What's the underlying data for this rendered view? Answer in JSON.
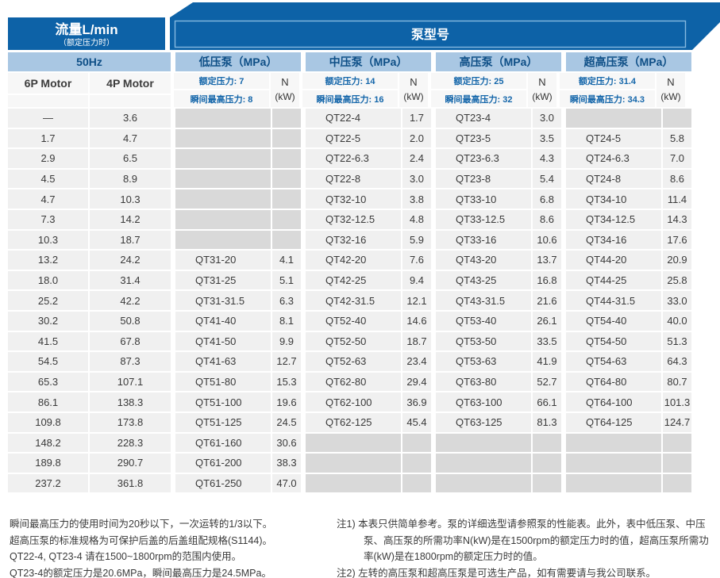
{
  "header": {
    "flow_title": "流量L/min",
    "flow_subtitle": "（额定压力时）",
    "pump_model_title": "泵型号",
    "frequency": "50Hz",
    "motor_6p": "6P Motor",
    "motor_4p": "4P Motor",
    "power_label_top": "N",
    "power_label_bottom": "(kW)"
  },
  "colors": {
    "dark_blue": "#0d62a7",
    "strip_blue": "#a9c7e3",
    "strip_text": "#0d4e86",
    "cell_gray": "#f0f0f0",
    "empty_gray": "#d9d9d9",
    "rated_text_blue": "#1466aa"
  },
  "sections": [
    {
      "name": "低压泵（MPa）",
      "rated_text": "额定压力: 7",
      "peak_text": "瞬间最高压力: 8"
    },
    {
      "name": "中压泵（MPa）",
      "rated_text": "额定压力: 14",
      "peak_text": "瞬间最高压力: 16"
    },
    {
      "name": "高压泵（MPa）",
      "rated_text": "额定压力: 25",
      "peak_text": "瞬间最高压力: 32"
    },
    {
      "name": "超高压泵（MPa）",
      "rated_text": "额定压力: 31.4",
      "peak_text": "瞬间最高压力: 34.3"
    }
  ],
  "rows": [
    {
      "flow6p": "—",
      "flow4p": "3.6",
      "cells": [
        "",
        "",
        "QT22-4",
        "1.7",
        "QT23-4",
        "3.0",
        "",
        ""
      ]
    },
    {
      "flow6p": "1.7",
      "flow4p": "4.7",
      "cells": [
        "",
        "",
        "QT22-5",
        "2.0",
        "QT23-5",
        "3.5",
        "QT24-5",
        "5.8"
      ]
    },
    {
      "flow6p": "2.9",
      "flow4p": "6.5",
      "cells": [
        "",
        "",
        "QT22-6.3",
        "2.4",
        "QT23-6.3",
        "4.3",
        "QT24-6.3",
        "7.0"
      ]
    },
    {
      "flow6p": "4.5",
      "flow4p": "8.9",
      "cells": [
        "",
        "",
        "QT22-8",
        "3.0",
        "QT23-8",
        "5.4",
        "QT24-8",
        "8.6"
      ]
    },
    {
      "flow6p": "4.7",
      "flow4p": "10.3",
      "cells": [
        "",
        "",
        "QT32-10",
        "3.8",
        "QT33-10",
        "6.8",
        "QT34-10",
        "11.4"
      ]
    },
    {
      "flow6p": "7.3",
      "flow4p": "14.2",
      "cells": [
        "",
        "",
        "QT32-12.5",
        "4.8",
        "QT33-12.5",
        "8.6",
        "QT34-12.5",
        "14.3"
      ]
    },
    {
      "flow6p": "10.3",
      "flow4p": "18.7",
      "cells": [
        "",
        "",
        "QT32-16",
        "5.9",
        "QT33-16",
        "10.6",
        "QT34-16",
        "17.6"
      ]
    },
    {
      "flow6p": "13.2",
      "flow4p": "24.2",
      "cells": [
        "QT31-20",
        "4.1",
        "QT42-20",
        "7.6",
        "QT43-20",
        "13.7",
        "QT44-20",
        "20.9"
      ]
    },
    {
      "flow6p": "18.0",
      "flow4p": "31.4",
      "cells": [
        "QT31-25",
        "5.1",
        "QT42-25",
        "9.4",
        "QT43-25",
        "16.8",
        "QT44-25",
        "25.8"
      ]
    },
    {
      "flow6p": "25.2",
      "flow4p": "42.2",
      "cells": [
        "QT31-31.5",
        "6.3",
        "QT42-31.5",
        "12.1",
        "QT43-31.5",
        "21.6",
        "QT44-31.5",
        "33.0"
      ]
    },
    {
      "flow6p": "30.2",
      "flow4p": "50.8",
      "cells": [
        "QT41-40",
        "8.1",
        "QT52-40",
        "14.6",
        "QT53-40",
        "26.1",
        "QT54-40",
        "40.0"
      ]
    },
    {
      "flow6p": "41.5",
      "flow4p": "67.8",
      "cells": [
        "QT41-50",
        "9.9",
        "QT52-50",
        "18.7",
        "QT53-50",
        "33.5",
        "QT54-50",
        "51.3"
      ]
    },
    {
      "flow6p": "54.5",
      "flow4p": "87.3",
      "cells": [
        "QT41-63",
        "12.7",
        "QT52-63",
        "23.4",
        "QT53-63",
        "41.9",
        "QT54-63",
        "64.3"
      ]
    },
    {
      "flow6p": "65.3",
      "flow4p": "107.1",
      "cells": [
        "QT51-80",
        "15.3",
        "QT62-80",
        "29.4",
        "QT63-80",
        "52.7",
        "QT64-80",
        "80.7"
      ]
    },
    {
      "flow6p": "86.1",
      "flow4p": "138.3",
      "cells": [
        "QT51-100",
        "19.6",
        "QT62-100",
        "36.9",
        "QT63-100",
        "66.1",
        "QT64-100",
        "101.3"
      ]
    },
    {
      "flow6p": "109.8",
      "flow4p": "173.8",
      "cells": [
        "QT51-125",
        "24.5",
        "QT62-125",
        "45.4",
        "QT63-125",
        "81.3",
        "QT64-125",
        "124.7"
      ]
    },
    {
      "flow6p": "148.2",
      "flow4p": "228.3",
      "cells": [
        "QT61-160",
        "30.6",
        "",
        "",
        "",
        "",
        "",
        ""
      ]
    },
    {
      "flow6p": "189.8",
      "flow4p": "290.7",
      "cells": [
        "QT61-200",
        "38.3",
        "",
        "",
        "",
        "",
        "",
        ""
      ]
    },
    {
      "flow6p": "237.2",
      "flow4p": "361.8",
      "cells": [
        "QT61-250",
        "47.0",
        "",
        "",
        "",
        "",
        "",
        ""
      ]
    }
  ],
  "footnotes": {
    "left": [
      "瞬间最高压力的使用时间为20秒以下，一次运转的1/3以下。",
      "超高压泵的标准规格为可保护后盖的后盖组配规格(S1144)。",
      "QT22-4, QT23-4 请在1500~1800rpm的范围内使用。",
      "QT23-4的额定压力是20.6MPa，瞬间最高压力是24.5MPa。"
    ],
    "note1": "注1) 本表只供简单参考。泵的详细选型请参照泵的性能表。此外，表中低压泵、中压泵、高压泵的所需功率N(kW)是在1500rpm的额定压力时的值，超高压泵所需功率(kW)是在1800rpm的额定压力时的值。",
    "note2": "注2) 左转的高压泵和超高压泵是可选生产品，如有需要请与我公司联系。"
  }
}
